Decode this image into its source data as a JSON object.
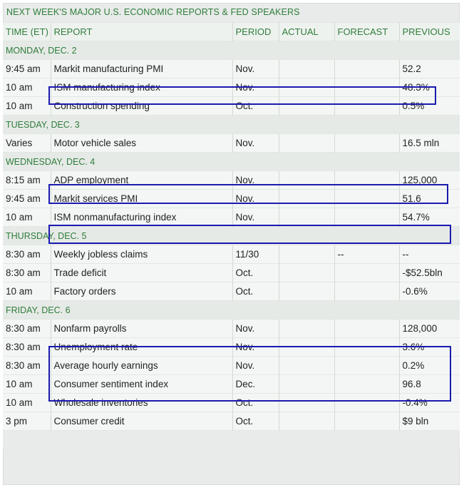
{
  "title": "NEXT WEEK'S MAJOR U.S. ECONOMIC REPORTS & FED SPEAKERS",
  "columns": {
    "time": "TIME (ET)",
    "report": "REPORT",
    "period": "PERIOD",
    "actual": "ACTUAL",
    "forecast": "FORECAST",
    "previous": "PREVIOUS"
  },
  "days": [
    {
      "label": "MONDAY, DEC. 2",
      "rows": [
        {
          "time": "9:45 am",
          "report": "Markit manufacturing PMI",
          "period": "Nov.",
          "actual": "",
          "forecast": "",
          "previous": "52.2"
        },
        {
          "time": "10 am",
          "report": "ISM manufacturing index",
          "period": "Nov.",
          "actual": "",
          "forecast": "",
          "previous": "48.3%"
        },
        {
          "time": "10 am",
          "report": "Construction spending",
          "period": "Oct.",
          "actual": "",
          "forecast": "",
          "previous": "0.5%"
        }
      ]
    },
    {
      "label": "TUESDAY, DEC. 3",
      "rows": [
        {
          "time": "Varies",
          "report": "Motor vehicle sales",
          "period": "Nov.",
          "actual": "",
          "forecast": "",
          "previous": "16.5 mln"
        }
      ]
    },
    {
      "label": "WEDNESDAY, DEC. 4",
      "rows": [
        {
          "time": "8:15 am",
          "report": "ADP employment",
          "period": "Nov.",
          "actual": "",
          "forecast": "",
          "previous": "125,000"
        },
        {
          "time": "9:45 am",
          "report": "Markit services PMI",
          "period": "Nov.",
          "actual": "",
          "forecast": "",
          "previous": "51.6"
        },
        {
          "time": "10 am",
          "report": "ISM nonmanufacturing index",
          "period": "Nov.",
          "actual": "",
          "forecast": "",
          "previous": "54.7%"
        }
      ]
    },
    {
      "label": "THURSDAY, DEC. 5",
      "rows": [
        {
          "time": "8:30 am",
          "report": "Weekly jobless claims",
          "period": "11/30",
          "actual": "",
          "forecast": "--",
          "previous": "--"
        },
        {
          "time": "8:30 am",
          "report": "Trade deficit",
          "period": "Oct.",
          "actual": "",
          "forecast": "",
          "previous": "-$52.5bln"
        },
        {
          "time": "10 am",
          "report": "Factory orders",
          "period": "Oct.",
          "actual": "",
          "forecast": "",
          "previous": "-0.6%"
        }
      ]
    },
    {
      "label": "FRIDAY, DEC. 6",
      "rows": [
        {
          "time": "8:30 am",
          "report": "Nonfarm payrolls",
          "period": "Nov.",
          "actual": "",
          "forecast": "",
          "previous": "128,000"
        },
        {
          "time": "8:30 am",
          "report": "Unemployment rate",
          "period": "Nov.",
          "actual": "",
          "forecast": "",
          "previous": "3.6%"
        },
        {
          "time": "8:30 am",
          "report": "Average hourly earnings",
          "period": "Nov.",
          "actual": "",
          "forecast": "",
          "previous": "0.2%"
        },
        {
          "time": "10 am",
          "report": "Consumer sentiment index",
          "period": "Dec.",
          "actual": "",
          "forecast": "",
          "previous": "96.8"
        },
        {
          "time": "10 am",
          "report": "Wholesale inventories",
          "period": "Oct.",
          "actual": "",
          "forecast": "",
          "previous": "-0.4%"
        },
        {
          "time": "3 pm",
          "report": "Consumer credit",
          "period": "Oct.",
          "actual": "",
          "forecast": "",
          "previous": "$9 bln"
        }
      ]
    }
  ],
  "colors": {
    "header_text": "#2f7d3b",
    "highlight_box": "#1a1aaf"
  }
}
